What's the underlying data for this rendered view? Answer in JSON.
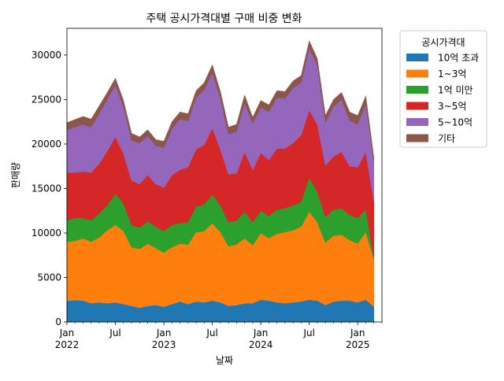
{
  "chart_data": {
    "type": "area",
    "stacked": true,
    "title": "주택 공시가격대별 구매 비중 변화",
    "xlabel": "날짜",
    "ylabel": "판매량",
    "ylim": [
      0,
      33000
    ],
    "yticks": [
      0,
      5000,
      10000,
      15000,
      20000,
      25000,
      30000
    ],
    "ytick_labels": [
      "0",
      "5000",
      "10000",
      "15000",
      "20000",
      "25000",
      "30000"
    ],
    "x_start": "2022-01",
    "x_end": "2025-04",
    "x_major_ticks": [
      {
        "date": "2022-01",
        "label": "Jan",
        "year": "2022"
      },
      {
        "date": "2022-07",
        "label": "Jul",
        "year": ""
      },
      {
        "date": "2023-01",
        "label": "Jan",
        "year": "2023"
      },
      {
        "date": "2023-07",
        "label": "Jul",
        "year": ""
      },
      {
        "date": "2024-01",
        "label": "Jan",
        "year": "2024"
      },
      {
        "date": "2024-07",
        "label": "Jul",
        "year": ""
      },
      {
        "date": "2025-01",
        "label": "Jan",
        "year": "2025"
      }
    ],
    "legend_title": "공시가격대",
    "legend_position": "outside right",
    "grid": false,
    "x": [
      "2022-01",
      "2022-02",
      "2022-03",
      "2022-04",
      "2022-05",
      "2022-06",
      "2022-07",
      "2022-08",
      "2022-09",
      "2022-10",
      "2022-11",
      "2022-12",
      "2023-01",
      "2023-02",
      "2023-03",
      "2023-04",
      "2023-05",
      "2023-06",
      "2023-07",
      "2023-08",
      "2023-09",
      "2023-10",
      "2023-11",
      "2023-12",
      "2024-01",
      "2024-02",
      "2024-03",
      "2024-04",
      "2024-05",
      "2024-06",
      "2024-07",
      "2024-08",
      "2024-09",
      "2024-10",
      "2024-11",
      "2024-12",
      "2025-01",
      "2025-02",
      "2025-03"
    ],
    "series": [
      {
        "name": "10억 초과",
        "color": "#1f77b4",
        "values": [
          2400,
          2450,
          2400,
          2100,
          2200,
          2100,
          2200,
          2000,
          1800,
          1600,
          1800,
          1900,
          1700,
          2000,
          2300,
          2000,
          2300,
          2200,
          2400,
          2200,
          1800,
          1900,
          2100,
          2100,
          2500,
          2400,
          2200,
          2100,
          2200,
          2300,
          2500,
          2400,
          1900,
          2300,
          2400,
          2400,
          2200,
          2500,
          1700
        ]
      },
      {
        "name": "1~3억",
        "color": "#ff7f0e",
        "values": [
          6600,
          6650,
          7000,
          6900,
          7300,
          8200,
          8700,
          8200,
          6600,
          6600,
          7000,
          6400,
          6100,
          6400,
          6500,
          6700,
          7800,
          8000,
          8700,
          7900,
          6700,
          6800,
          7300,
          6500,
          7500,
          7000,
          7700,
          8000,
          8100,
          8400,
          9900,
          8800,
          7000,
          7400,
          7400,
          6800,
          6600,
          7600,
          5300
        ]
      },
      {
        "name": "1억 미만",
        "color": "#2ca02c",
        "values": [
          2400,
          2600,
          2300,
          2400,
          2700,
          2800,
          3500,
          3100,
          2500,
          2400,
          2500,
          2400,
          2400,
          2500,
          2300,
          2500,
          2900,
          3000,
          3200,
          3000,
          2700,
          2700,
          3000,
          2600,
          2500,
          2500,
          2700,
          2700,
          2800,
          2800,
          3800,
          3400,
          2900,
          2900,
          3000,
          2800,
          2900,
          2500,
          200
        ]
      },
      {
        "name": "3~5억",
        "color": "#d62728",
        "values": [
          5400,
          5100,
          5200,
          5400,
          5600,
          6100,
          6400,
          5600,
          5000,
          4900,
          5200,
          4800,
          4900,
          5600,
          6000,
          6200,
          6400,
          6700,
          7500,
          6300,
          5400,
          5300,
          6700,
          5900,
          6500,
          6300,
          6900,
          6700,
          7000,
          7500,
          7600,
          7600,
          5800,
          6000,
          6300,
          5500,
          5700,
          6500,
          6300
        ]
      },
      {
        "name": "5~10억",
        "color": "#9467bd",
        "values": [
          4800,
          5100,
          5300,
          5100,
          5600,
          5800,
          5800,
          5300,
          4500,
          4600,
          4400,
          4300,
          4500,
          5200,
          5700,
          5200,
          5800,
          6200,
          6200,
          5700,
          4500,
          4700,
          5500,
          5200,
          5100,
          5400,
          5700,
          5600,
          6200,
          5900,
          6900,
          6600,
          4800,
          5600,
          5900,
          5100,
          4800,
          5300,
          4500
        ]
      },
      {
        "name": "기타",
        "color": "#8c564b",
        "values": [
          800,
          850,
          900,
          900,
          900,
          800,
          800,
          700,
          800,
          700,
          700,
          700,
          700,
          800,
          800,
          800,
          800,
          800,
          900,
          800,
          800,
          800,
          900,
          700,
          800,
          800,
          800,
          800,
          800,
          800,
          900,
          800,
          800,
          800,
          800,
          1000,
          1000,
          1000,
          500
        ]
      }
    ]
  }
}
